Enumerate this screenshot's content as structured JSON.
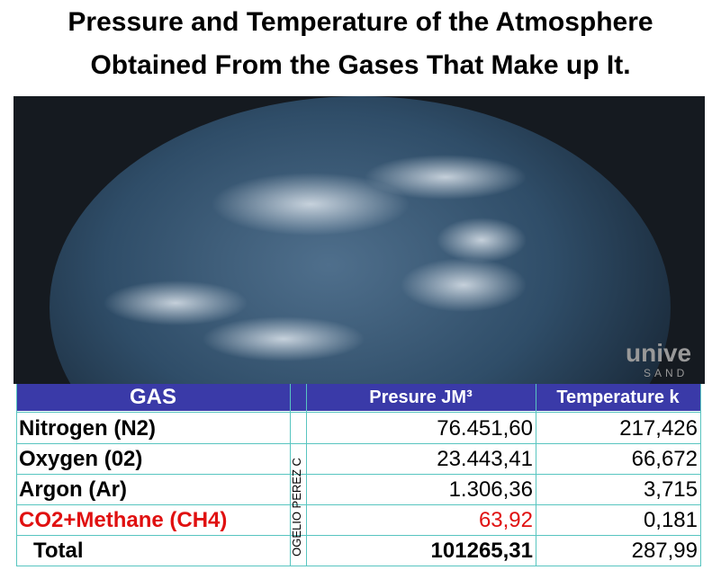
{
  "header": {
    "title_line1": "Pressure and Temperature of the Atmosphere",
    "title_line2": "Obtained From the Gases That Make up It."
  },
  "image": {
    "watermark": "unive",
    "watermark_sub": "SAND"
  },
  "table": {
    "columns": [
      "GAS",
      "Presure JM³",
      "Temperature k"
    ],
    "side_label": "OGELIO PEREZ C",
    "rows": [
      [
        "Nitrogen (N2)",
        "76.451,60",
        "217,426"
      ],
      [
        "Oxygen (02)",
        "23.443,41",
        "66,672"
      ],
      [
        "Argon (Ar)",
        "1.306,36",
        "3,715"
      ],
      [
        "CO2+Methane (CH4)",
        "63,92",
        "0,181"
      ],
      [
        "Total",
        "101265,31",
        "287,99"
      ]
    ]
  }
}
